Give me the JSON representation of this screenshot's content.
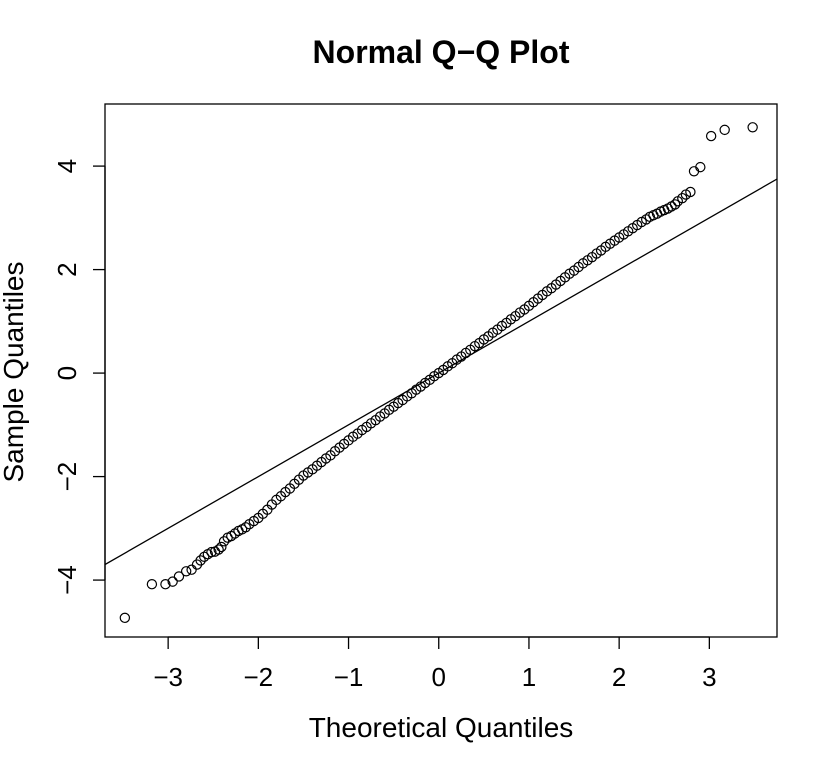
{
  "chart_data": {
    "type": "scatter",
    "title": "Normal Q−Q Plot",
    "xlabel": "Theoretical Quantiles",
    "ylabel": "Sample Quantiles",
    "xlim": [
      -3.7,
      3.75
    ],
    "ylim": [
      -5.1,
      5.2
    ],
    "x_ticks": [
      {
        "value": -3,
        "label": "−3"
      },
      {
        "value": -2,
        "label": "−2"
      },
      {
        "value": -1,
        "label": "−1"
      },
      {
        "value": 0,
        "label": "0"
      },
      {
        "value": 1,
        "label": "1"
      },
      {
        "value": 2,
        "label": "2"
      },
      {
        "value": 3,
        "label": "3"
      }
    ],
    "y_ticks": [
      {
        "value": -4,
        "label": "−4"
      },
      {
        "value": -2,
        "label": "−2"
      },
      {
        "value": 0,
        "label": "0"
      },
      {
        "value": 2,
        "label": "2"
      },
      {
        "value": 4,
        "label": "4"
      }
    ],
    "reference_line": {
      "intercept": 0.0,
      "slope": 1.0
    },
    "grid": false,
    "legend": "none",
    "points": [
      [
        -3.48,
        -4.73
      ],
      [
        -3.18,
        -4.08
      ],
      [
        -3.03,
        -4.08
      ],
      [
        -2.95,
        -4.03
      ],
      [
        -2.88,
        -3.93
      ],
      [
        -2.8,
        -3.83
      ],
      [
        -2.74,
        -3.8
      ],
      [
        -2.68,
        -3.7
      ],
      [
        -2.64,
        -3.62
      ],
      [
        -2.6,
        -3.55
      ],
      [
        -2.56,
        -3.5
      ],
      [
        -2.52,
        -3.46
      ],
      [
        -2.48,
        -3.45
      ],
      [
        -2.44,
        -3.41
      ],
      [
        -2.41,
        -3.36
      ],
      [
        -2.38,
        -3.25
      ],
      [
        -2.34,
        -3.18
      ],
      [
        -2.3,
        -3.15
      ],
      [
        -2.26,
        -3.1
      ],
      [
        -2.22,
        -3.05
      ],
      [
        -2.18,
        -3.02
      ],
      [
        -2.14,
        -2.98
      ],
      [
        -2.1,
        -2.92
      ],
      [
        -2.05,
        -2.86
      ],
      [
        -2.0,
        -2.8
      ],
      [
        -1.95,
        -2.72
      ],
      [
        -1.9,
        -2.64
      ],
      [
        -1.85,
        -2.54
      ],
      [
        -1.8,
        -2.45
      ],
      [
        -1.75,
        -2.38
      ],
      [
        -1.7,
        -2.3
      ],
      [
        -1.65,
        -2.23
      ],
      [
        -1.6,
        -2.14
      ],
      [
        -1.55,
        -2.06
      ],
      [
        -1.5,
        -1.98
      ],
      [
        -1.45,
        -1.92
      ],
      [
        -1.4,
        -1.86
      ],
      [
        -1.35,
        -1.79
      ],
      [
        -1.3,
        -1.72
      ],
      [
        -1.25,
        -1.65
      ],
      [
        -1.2,
        -1.59
      ],
      [
        -1.15,
        -1.51
      ],
      [
        -1.1,
        -1.44
      ],
      [
        -1.05,
        -1.37
      ],
      [
        -1.0,
        -1.3
      ],
      [
        -0.95,
        -1.23
      ],
      [
        -0.9,
        -1.17
      ],
      [
        -0.85,
        -1.1
      ],
      [
        -0.8,
        -1.04
      ],
      [
        -0.75,
        -0.97
      ],
      [
        -0.7,
        -0.91
      ],
      [
        -0.65,
        -0.84
      ],
      [
        -0.6,
        -0.78
      ],
      [
        -0.55,
        -0.71
      ],
      [
        -0.5,
        -0.65
      ],
      [
        -0.45,
        -0.58
      ],
      [
        -0.4,
        -0.52
      ],
      [
        -0.35,
        -0.45
      ],
      [
        -0.3,
        -0.39
      ],
      [
        -0.25,
        -0.32
      ],
      [
        -0.2,
        -0.26
      ],
      [
        -0.15,
        -0.19
      ],
      [
        -0.1,
        -0.13
      ],
      [
        -0.05,
        -0.06
      ],
      [
        0.0,
        0.0
      ],
      [
        0.05,
        0.06
      ],
      [
        0.1,
        0.13
      ],
      [
        0.15,
        0.19
      ],
      [
        0.2,
        0.26
      ],
      [
        0.25,
        0.32
      ],
      [
        0.3,
        0.39
      ],
      [
        0.35,
        0.45
      ],
      [
        0.4,
        0.52
      ],
      [
        0.45,
        0.58
      ],
      [
        0.5,
        0.65
      ],
      [
        0.55,
        0.71
      ],
      [
        0.6,
        0.78
      ],
      [
        0.65,
        0.84
      ],
      [
        0.7,
        0.91
      ],
      [
        0.75,
        0.97
      ],
      [
        0.8,
        1.04
      ],
      [
        0.85,
        1.1
      ],
      [
        0.9,
        1.17
      ],
      [
        0.95,
        1.23
      ],
      [
        1.0,
        1.3
      ],
      [
        1.05,
        1.37
      ],
      [
        1.1,
        1.44
      ],
      [
        1.15,
        1.51
      ],
      [
        1.2,
        1.58
      ],
      [
        1.25,
        1.64
      ],
      [
        1.3,
        1.71
      ],
      [
        1.35,
        1.78
      ],
      [
        1.4,
        1.85
      ],
      [
        1.45,
        1.92
      ],
      [
        1.5,
        1.98
      ],
      [
        1.55,
        2.05
      ],
      [
        1.6,
        2.12
      ],
      [
        1.65,
        2.18
      ],
      [
        1.7,
        2.24
      ],
      [
        1.75,
        2.31
      ],
      [
        1.8,
        2.37
      ],
      [
        1.85,
        2.44
      ],
      [
        1.9,
        2.5
      ],
      [
        1.95,
        2.56
      ],
      [
        2.0,
        2.62
      ],
      [
        2.05,
        2.68
      ],
      [
        2.1,
        2.74
      ],
      [
        2.15,
        2.8
      ],
      [
        2.2,
        2.86
      ],
      [
        2.25,
        2.92
      ],
      [
        2.3,
        2.97
      ],
      [
        2.34,
        3.02
      ],
      [
        2.38,
        3.05
      ],
      [
        2.42,
        3.08
      ],
      [
        2.46,
        3.12
      ],
      [
        2.5,
        3.15
      ],
      [
        2.54,
        3.18
      ],
      [
        2.58,
        3.22
      ],
      [
        2.62,
        3.26
      ],
      [
        2.65,
        3.32
      ],
      [
        2.7,
        3.38
      ],
      [
        2.74,
        3.45
      ],
      [
        2.79,
        3.5
      ],
      [
        2.83,
        3.9
      ],
      [
        2.9,
        3.98
      ],
      [
        3.02,
        4.58
      ],
      [
        3.17,
        4.7
      ],
      [
        3.48,
        4.75
      ]
    ]
  }
}
